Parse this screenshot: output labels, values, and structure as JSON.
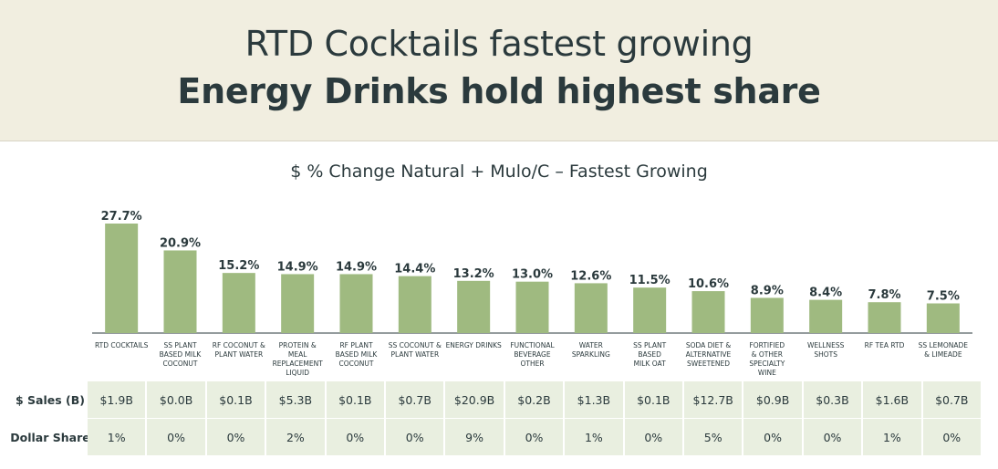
{
  "header": {
    "title_line1": "RTD Cocktails fastest growing",
    "title_line2": "Energy Drinks hold highest share"
  },
  "chart_data": {
    "type": "bar",
    "title": "$ % Change Natural + Mulo/C – Fastest Growing",
    "categories": [
      [
        "RTD COCKTAILS"
      ],
      [
        "SS PLANT",
        "BASED MILK",
        "COCONUT"
      ],
      [
        "RF COCONUT &",
        "PLANT WATER"
      ],
      [
        "PROTEIN &",
        "MEAL",
        "REPLACEMENT",
        "LIQUID"
      ],
      [
        "RF PLANT",
        "BASED MILK",
        "COCONUT"
      ],
      [
        "SS COCONUT &",
        "PLANT WATER"
      ],
      [
        "ENERGY DRINKS"
      ],
      [
        "FUNCTIONAL",
        "BEVERAGE",
        "OTHER"
      ],
      [
        "WATER",
        "SPARKLING"
      ],
      [
        "SS PLANT",
        "BASED",
        "MILK OAT"
      ],
      [
        "SODA DIET &",
        "ALTERNATIVE",
        "SWEETENED"
      ],
      [
        "FORTIFIED",
        "& OTHER",
        "SPECIALTY",
        "WINE"
      ],
      [
        "WELLNESS",
        "SHOTS"
      ],
      [
        "RF TEA RTD"
      ],
      [
        "SS LEMONADE",
        "& LIMEADE"
      ]
    ],
    "values": [
      27.7,
      20.9,
      15.2,
      14.9,
      14.9,
      14.4,
      13.2,
      13.0,
      12.6,
      11.5,
      10.6,
      8.9,
      8.4,
      7.8,
      7.5
    ],
    "value_labels": [
      "27.7%",
      "20.9%",
      "15.2%",
      "14.9%",
      "14.9%",
      "14.4%",
      "13.2%",
      "13.0%",
      "12.6%",
      "11.5%",
      "10.6%",
      "8.9%",
      "8.4%",
      "7.8%",
      "7.5%"
    ],
    "ylim": [
      0,
      30
    ],
    "xlabel": "",
    "ylabel": "",
    "grid": false,
    "bar_color": "#9fba80"
  },
  "table": {
    "rows": [
      {
        "label": "$ Sales (B)",
        "values": [
          "$1.9B",
          "$0.0B",
          "$0.1B",
          "$5.3B",
          "$0.1B",
          "$0.7B",
          "$20.9B",
          "$0.2B",
          "$1.3B",
          "$0.1B",
          "$12.7B",
          "$0.9B",
          "$0.3B",
          "$1.6B",
          "$0.7B"
        ]
      },
      {
        "label": "Dollar Share",
        "values": [
          "1%",
          "0%",
          "0%",
          "2%",
          "0%",
          "0%",
          "9%",
          "0%",
          "1%",
          "0%",
          "5%",
          "0%",
          "0%",
          "1%",
          "0%"
        ]
      }
    ]
  },
  "colors": {
    "header_bg": "#f1eee0",
    "text": "#2b3a3d",
    "bar": "#9fba80",
    "cell_bg": "#e9efe0"
  }
}
